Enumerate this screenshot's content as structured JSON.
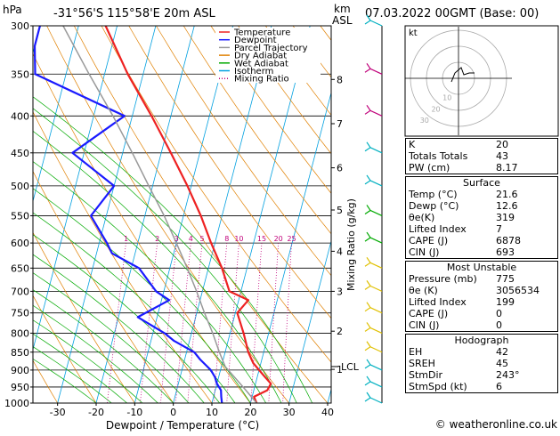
{
  "header": {
    "location": "-31°56'S 115°58'E 20m ASL",
    "datetime": "07.03.2022 00GMT (Base: 00)",
    "hpa_label": "hPa",
    "km_label": "km",
    "asl_label": "ASL",
    "watermark": "© weatheronline.co.uk"
  },
  "chart_data": {
    "type": "line",
    "xlabel": "Dewpoint / Temperature (°C)",
    "ylabel_right": "Mixing Ratio (g/kg)",
    "x_ticks": [
      -30,
      -20,
      -10,
      0,
      10,
      20,
      30,
      40
    ],
    "xlim": [
      -40,
      40
    ],
    "ylim": [
      1000,
      300
    ],
    "y_scale": "log",
    "pressure_ticks": [
      300,
      350,
      400,
      450,
      500,
      550,
      600,
      650,
      700,
      750,
      800,
      850,
      900,
      950,
      1000
    ],
    "km_ticks": [
      {
        "label": "8",
        "p": 356
      },
      {
        "label": "7",
        "p": 410
      },
      {
        "label": "6",
        "p": 472
      },
      {
        "label": "5",
        "p": 540
      },
      {
        "label": "4",
        "p": 616
      },
      {
        "label": "3",
        "p": 700
      },
      {
        "label": "2",
        "p": 795
      },
      {
        "label": "1",
        "p": 898
      }
    ],
    "lcl": {
      "label": "LCL",
      "p": 890
    },
    "mixing_ratio_labels": [
      "1",
      "2",
      "3",
      "4",
      "5",
      "8",
      "10",
      "15",
      "20",
      "25"
    ],
    "legend": {
      "position": "top",
      "entries": [
        {
          "name": "Temperature",
          "color": "#ee2222"
        },
        {
          "name": "Dewpoint",
          "color": "#1a1aff"
        },
        {
          "name": "Parcel Trajectory",
          "color": "#999999"
        },
        {
          "name": "Dry Adiabat",
          "color": "#e08000"
        },
        {
          "name": "Wet Adiabat",
          "color": "#00aa00"
        },
        {
          "name": "Isotherm",
          "color": "#00a0e0"
        },
        {
          "name": "Mixing Ratio",
          "color": "#c0007a"
        }
      ]
    },
    "series": [
      {
        "name": "Temperature",
        "color": "#ee2222",
        "points": [
          {
            "p": 1000,
            "t": 21.6
          },
          {
            "p": 980,
            "t": 20.5
          },
          {
            "p": 960,
            "t": 23.5
          },
          {
            "p": 940,
            "t": 24.0
          },
          {
            "p": 920,
            "t": 22.0
          },
          {
            "p": 900,
            "t": 20.0
          },
          {
            "p": 880,
            "t": 18.0
          },
          {
            "p": 850,
            "t": 16.0
          },
          {
            "p": 800,
            "t": 13.5
          },
          {
            "p": 750,
            "t": 10.5
          },
          {
            "p": 720,
            "t": 12.5
          },
          {
            "p": 700,
            "t": 7.0
          },
          {
            "p": 650,
            "t": 3.5
          },
          {
            "p": 600,
            "t": -1.0
          },
          {
            "p": 550,
            "t": -5.5
          },
          {
            "p": 500,
            "t": -11.0
          },
          {
            "p": 450,
            "t": -17.5
          },
          {
            "p": 400,
            "t": -25.0
          },
          {
            "p": 350,
            "t": -34.0
          },
          {
            "p": 300,
            "t": -43.0
          }
        ]
      },
      {
        "name": "Dewpoint",
        "color": "#1a1aff",
        "points": [
          {
            "p": 1000,
            "t": 12.6
          },
          {
            "p": 980,
            "t": 12.0
          },
          {
            "p": 960,
            "t": 11.5
          },
          {
            "p": 940,
            "t": 10.0
          },
          {
            "p": 920,
            "t": 9.0
          },
          {
            "p": 900,
            "t": 7.5
          },
          {
            "p": 870,
            "t": 4.0
          },
          {
            "p": 850,
            "t": 2.0
          },
          {
            "p": 820,
            "t": -4.0
          },
          {
            "p": 800,
            "t": -7.0
          },
          {
            "p": 760,
            "t": -15.0
          },
          {
            "p": 720,
            "t": -8.0
          },
          {
            "p": 700,
            "t": -12.0
          },
          {
            "p": 650,
            "t": -18.0
          },
          {
            "p": 620,
            "t": -26.0
          },
          {
            "p": 600,
            "t": -28.0
          },
          {
            "p": 550,
            "t": -34.0
          },
          {
            "p": 500,
            "t": -30.0
          },
          {
            "p": 450,
            "t": -43.0
          },
          {
            "p": 400,
            "t": -32.0
          },
          {
            "p": 350,
            "t": -58.0
          },
          {
            "p": 320,
            "t": -60.0
          },
          {
            "p": 300,
            "t": -60.0
          }
        ]
      },
      {
        "name": "Parcel Trajectory",
        "color": "#999999",
        "points": [
          {
            "p": 1000,
            "t": 21.6
          },
          {
            "p": 950,
            "t": 17.0
          },
          {
            "p": 890,
            "t": 11.0
          },
          {
            "p": 850,
            "t": 8.5
          },
          {
            "p": 800,
            "t": 5.5
          },
          {
            "p": 750,
            "t": 2.0
          },
          {
            "p": 700,
            "t": -1.5
          },
          {
            "p": 650,
            "t": -5.5
          },
          {
            "p": 600,
            "t": -10.0
          },
          {
            "p": 550,
            "t": -15.0
          },
          {
            "p": 500,
            "t": -21.0
          },
          {
            "p": 450,
            "t": -27.5
          },
          {
            "p": 400,
            "t": -35.0
          },
          {
            "p": 350,
            "t": -44.0
          },
          {
            "p": 300,
            "t": -54.0
          }
        ]
      }
    ]
  },
  "wind_profile": {
    "color_by_level": [
      "#00b0c0",
      "#c0007a",
      "#c0007a",
      "#00b0c0",
      "#00b0c0",
      "#00aa00",
      "#00aa00",
      "#e0c000",
      "#e0c000",
      "#e0c000",
      "#e0c000",
      "#e0c000",
      "#00b0c0",
      "#00b0c0",
      "#00b0c0"
    ],
    "pressures": [
      300,
      350,
      400,
      450,
      500,
      550,
      600,
      650,
      700,
      750,
      800,
      850,
      900,
      950,
      1000
    ]
  },
  "hodograph": {
    "unit_label": "kt",
    "rings": [
      "10",
      "20",
      "30"
    ]
  },
  "indices": {
    "rows": [
      {
        "label": "K",
        "value": "20"
      },
      {
        "label": "Totals Totals",
        "value": "43"
      },
      {
        "label": "PW (cm)",
        "value": "8.17"
      }
    ]
  },
  "surface": {
    "title": "Surface",
    "rows": [
      {
        "label": "Temp (°C)",
        "value": "21.6"
      },
      {
        "label": "Dewp (°C)",
        "value": "12.6"
      },
      {
        "label": "θe(K)",
        "value": "319"
      },
      {
        "label": "Lifted Index",
        "value": "7"
      },
      {
        "label": "CAPE (J)",
        "value": "6878"
      },
      {
        "label": "CIN (J)",
        "value": "693"
      }
    ]
  },
  "most_unstable": {
    "title": "Most Unstable",
    "rows": [
      {
        "label": "Pressure (mb)",
        "value": "775"
      },
      {
        "label": "θe (K)",
        "value": "3056534"
      },
      {
        "label": "Lifted Index",
        "value": "199"
      },
      {
        "label": "CAPE (J)",
        "value": "0"
      },
      {
        "label": "CIN (J)",
        "value": "0"
      }
    ]
  },
  "hodograph_table": {
    "title": "Hodograph",
    "rows": [
      {
        "label": "EH",
        "value": "42"
      },
      {
        "label": "SREH",
        "value": "45"
      },
      {
        "label": "StmDir",
        "value": "243°"
      },
      {
        "label": "StmSpd (kt)",
        "value": "6"
      }
    ]
  }
}
